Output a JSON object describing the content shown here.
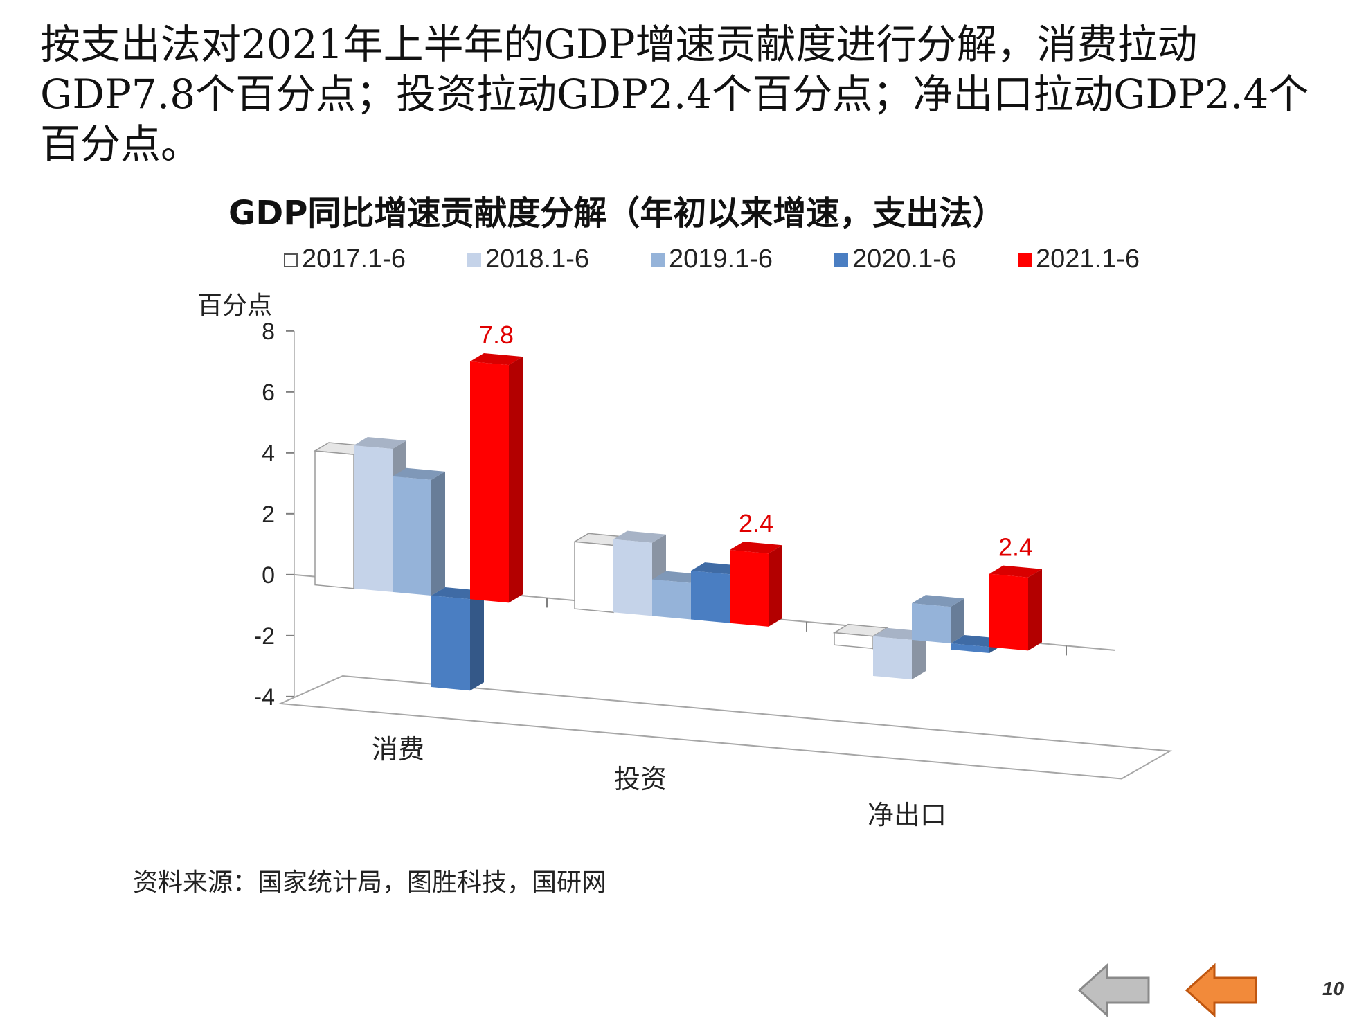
{
  "headline": "按支出法对2021年上半年的GDP增速贡献度进行分解，消费拉动GDP7.8个百分点；投资拉动GDP2.4个百分点；净出口拉动GDP2.4个百分点。",
  "source": "资料来源：国家统计局，图胜科技，国研网",
  "page_number": "10",
  "nav": {
    "prev_icon": "arrow-left-gray-icon",
    "next_icon": "arrow-left-orange-icon"
  },
  "chart_data": {
    "type": "bar",
    "title": "GDP同比增速贡献度分解（年初以来增速，支出法）",
    "ylabel": "百分点",
    "ylim": [
      -4,
      8
    ],
    "yticks": [
      "8",
      "6",
      "4",
      "2",
      "0",
      "-2",
      "-4"
    ],
    "categories": [
      "消费",
      "投资",
      "净出口"
    ],
    "legend_position": "top",
    "series": [
      {
        "name": "2017.1-6",
        "color": "#ffffff",
        "values": [
          4.4,
          2.2,
          -0.4
        ]
      },
      {
        "name": "2018.1-6",
        "color": "#c5d3e9",
        "values": [
          4.7,
          2.4,
          -1.3
        ]
      },
      {
        "name": "2019.1-6",
        "color": "#95b3d9",
        "values": [
          3.8,
          1.2,
          1.2
        ]
      },
      {
        "name": "2020.1-6",
        "color": "#4a7ec2",
        "values": [
          -3.0,
          1.6,
          -0.2
        ]
      },
      {
        "name": "2021.1-6",
        "color": "#ff0000",
        "values": [
          7.8,
          2.4,
          2.4
        ]
      }
    ],
    "data_labels": [
      {
        "series": "2021.1-6",
        "category": "消费",
        "text": "7.8"
      },
      {
        "series": "2021.1-6",
        "category": "投资",
        "text": "2.4"
      },
      {
        "series": "2021.1-6",
        "category": "净出口",
        "text": "2.4"
      }
    ],
    "data_label_color": "#e00000"
  }
}
